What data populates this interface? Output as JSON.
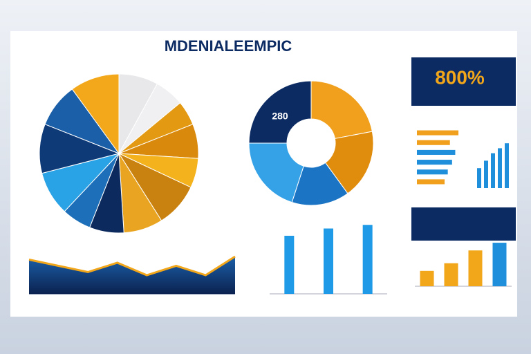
{
  "header": {
    "title": "MDENIALEEMPIC"
  },
  "kpi": {
    "label": "800%"
  },
  "chart_data": [
    {
      "type": "pie",
      "values": [
        8,
        6,
        5,
        7,
        6,
        9,
        8,
        7,
        6,
        9,
        10,
        9,
        10
      ],
      "colors": [
        "#e8e8ea",
        "#f0f0f2",
        "#e39a12",
        "#d9890c",
        "#f4b21c",
        "#c9820f",
        "#e9a521",
        "#0c2a5e",
        "#1c6fb8",
        "#2aa3e6",
        "#0f3a78",
        "#1b5fa8",
        "#f3a81b"
      ]
    },
    {
      "type": "donut",
      "center_label": "280",
      "values": [
        22,
        18,
        15,
        20,
        25
      ],
      "colors": [
        "#f0a01c",
        "#e08c0c",
        "#1b75c4",
        "#35a2e8",
        "#0d2b63"
      ]
    },
    {
      "type": "area",
      "values": [
        55,
        45,
        35,
        50,
        30,
        45,
        30,
        60
      ],
      "ylim": [
        0,
        100
      ],
      "color": "#0d2b63"
    },
    {
      "type": "bar",
      "values": [
        80,
        90,
        95
      ],
      "ylim": [
        0,
        100
      ],
      "color": "#1f9ae6"
    },
    {
      "type": "hbar",
      "values": [
        78,
        62,
        72,
        66,
        58,
        52
      ],
      "xlim": [
        0,
        100
      ],
      "colors": [
        "#f0a01c",
        "#f0a01c",
        "#1f8fdc",
        "#1f8fdc",
        "#1f8fdc",
        "#f0a01c"
      ]
    },
    {
      "type": "bar",
      "values": [
        30,
        45,
        70,
        85
      ],
      "ylim": [
        0,
        100
      ],
      "colors": [
        "#f2a61a",
        "#f2a61a",
        "#f2a61a",
        "#1f8fdc"
      ]
    },
    {
      "type": "bar",
      "values": [
        40,
        55,
        70,
        80,
        90
      ],
      "ylim": [
        0,
        100
      ],
      "color": "#1f8fdc"
    }
  ]
}
